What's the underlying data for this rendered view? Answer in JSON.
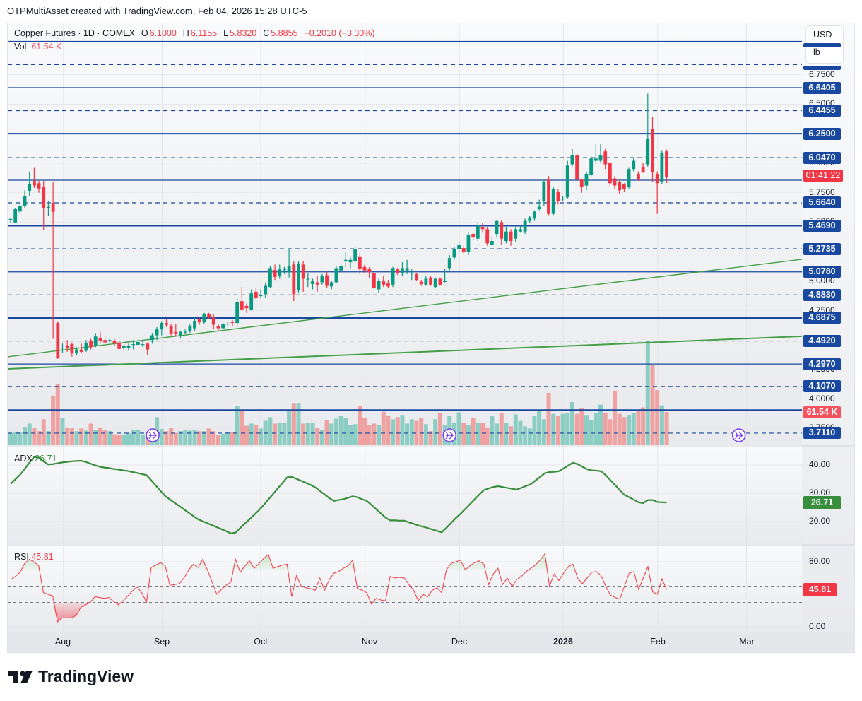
{
  "attribution": "OTPMultiAsset created with TradingView.com, Feb 04, 2026 15:28 UTC-5",
  "legend": {
    "symbol": "Copper Futures · 1D · COMEX",
    "o_label": "O",
    "o": "6.1000",
    "h_label": "H",
    "h": "6.1155",
    "l_label": "L",
    "l": "5.8320",
    "c_label": "C",
    "c": "5.8855",
    "change": "−0.2010 (−3.30%)",
    "vol_label": "Vol",
    "vol": "61.54 K"
  },
  "units": {
    "currency": "USD",
    "unit": "lb"
  },
  "colors": {
    "up": "#089981",
    "down": "#f23645",
    "vol_up": "#8ccdc4",
    "vol_down": "#eea2a2",
    "level": "#1848a0",
    "trend": "#43a047",
    "adx": "#388e3c",
    "rsi": "#f23645",
    "event": "#7b3ff2"
  },
  "price_axis": {
    "ticks": [
      "6.7500",
      "6.5000",
      "6.0000",
      "5.7500",
      "5.5000",
      "5.2500",
      "5.0000",
      "4.7500",
      "4.2500",
      "4.0000",
      "3.7500"
    ],
    "labels": [
      "6.6405",
      "6.4455",
      "6.2500",
      "6.0470",
      "5.6640",
      "5.4690",
      "5.2735",
      "5.0780",
      "4.8830",
      "4.6875",
      "4.4920",
      "4.2970",
      "4.1070",
      "3.7110"
    ],
    "countdown": "01:41:22",
    "volume_label": "61.54 K"
  },
  "levels": [
    {
      "price": 7.0305,
      "style": "solid",
      "weight": "thick"
    },
    {
      "price": 6.8355,
      "style": "dashed"
    },
    {
      "price": 6.6405,
      "style": "solid"
    },
    {
      "price": 6.4455,
      "style": "dashed"
    },
    {
      "price": 6.25,
      "style": "solid",
      "weight": "thick"
    },
    {
      "price": 6.047,
      "style": "dashed"
    },
    {
      "price": 5.8555,
      "style": "solid"
    },
    {
      "price": 5.664,
      "style": "dashed"
    },
    {
      "price": 5.469,
      "style": "solid",
      "weight": "thick"
    },
    {
      "price": 5.2735,
      "style": "dashed"
    },
    {
      "price": 5.078,
      "style": "solid"
    },
    {
      "price": 4.883,
      "style": "dashed"
    },
    {
      "price": 4.6875,
      "style": "solid",
      "weight": "thick"
    },
    {
      "price": 4.492,
      "style": "dashed"
    },
    {
      "price": 4.297,
      "style": "solid"
    },
    {
      "price": 4.107,
      "style": "dashed"
    },
    {
      "price": 3.9065,
      "style": "solid",
      "weight": "thick"
    },
    {
      "price": 3.711,
      "style": "dashed"
    }
  ],
  "trendlines": [
    {
      "start_price": 4.358,
      "end_price": 5.185
    },
    {
      "start_price": 4.256,
      "end_price": 4.532
    }
  ],
  "time_axis": [
    {
      "label": "Aug",
      "bold": false,
      "bar": 11.2
    },
    {
      "label": "Sep",
      "bold": false,
      "bar": 32.1
    },
    {
      "label": "Oct",
      "bold": false,
      "bar": 53.0
    },
    {
      "label": "Nov",
      "bold": false,
      "bar": 75.1
    },
    {
      "label": "Dec",
      "bold": false,
      "bar": 95.1
    },
    {
      "label": "2026",
      "bold": true,
      "bar": 117.1
    },
    {
      "label": "Feb",
      "bold": false,
      "bar": 137.1
    },
    {
      "label": "Mar",
      "bold": false,
      "bar": 155.9
    }
  ],
  "events": [
    {
      "icon": "event-arrow-icon",
      "bar": 30.1
    },
    {
      "icon": "event-arrow-icon",
      "bar": 93.0
    },
    {
      "icon": "event-arrow-icon",
      "bar": 154.3
    }
  ],
  "adx": {
    "label": "ADX",
    "value": "26.71",
    "ticks": [
      "40.00",
      "30.00",
      "20.00"
    ]
  },
  "rsi": {
    "label": "RSI",
    "value": "45.81",
    "ticks": [
      "80.00",
      "40.00",
      "0.00"
    ]
  },
  "brand": "TradingView",
  "chart_data": {
    "type": "candlestick",
    "ohlc": [
      [
        5.52,
        5.54,
        5.49,
        5.526
      ],
      [
        5.497,
        5.62,
        5.49,
        5.61
      ],
      [
        5.59,
        5.67,
        5.57,
        5.64
      ],
      [
        5.64,
        5.77,
        5.62,
        5.72
      ],
      [
        5.766,
        5.93,
        5.72,
        5.826
      ],
      [
        5.85,
        5.96,
        5.79,
        5.81
      ],
      [
        5.83,
        5.85,
        5.75,
        5.785
      ],
      [
        5.8,
        5.85,
        5.43,
        5.616
      ],
      [
        5.62,
        5.68,
        5.55,
        5.63
      ],
      [
        5.664,
        5.84,
        4.51,
        5.587
      ],
      [
        4.645,
        4.66,
        4.34,
        4.35
      ],
      [
        4.43,
        4.47,
        4.39,
        4.436
      ],
      [
        4.455,
        4.5,
        4.4,
        4.436
      ],
      [
        4.465,
        4.48,
        4.36,
        4.39
      ],
      [
        4.39,
        4.44,
        4.37,
        4.42
      ],
      [
        4.42,
        4.47,
        4.39,
        4.4
      ],
      [
        4.41,
        4.5,
        4.4,
        4.476
      ],
      [
        4.49,
        4.51,
        4.42,
        4.44
      ],
      [
        4.452,
        4.56,
        4.44,
        4.53
      ],
      [
        4.52,
        4.57,
        4.47,
        4.49
      ],
      [
        4.5,
        4.53,
        4.46,
        4.48
      ],
      [
        4.5,
        4.52,
        4.47,
        4.5
      ],
      [
        4.49,
        4.51,
        4.45,
        4.47
      ],
      [
        4.48,
        4.49,
        4.42,
        4.425
      ],
      [
        4.43,
        4.46,
        4.41,
        4.45
      ],
      [
        4.43,
        4.47,
        4.41,
        4.45
      ],
      [
        4.46,
        4.5,
        4.42,
        4.465
      ],
      [
        4.46,
        4.5,
        4.45,
        4.484
      ],
      [
        4.465,
        4.49,
        4.44,
        4.465
      ],
      [
        4.47,
        4.48,
        4.37,
        4.42
      ],
      [
        4.5,
        4.56,
        4.47,
        4.54
      ],
      [
        4.54,
        4.61,
        4.5,
        4.59
      ],
      [
        4.59,
        4.66,
        4.54,
        4.645
      ],
      [
        4.645,
        4.68,
        4.61,
        4.63
      ],
      [
        4.62,
        4.64,
        4.54,
        4.557
      ],
      [
        4.57,
        4.64,
        4.53,
        4.55
      ],
      [
        4.54,
        4.58,
        4.52,
        4.57
      ],
      [
        4.57,
        4.59,
        4.55,
        4.57
      ],
      [
        4.574,
        4.64,
        4.56,
        4.62
      ],
      [
        4.6,
        4.69,
        4.58,
        4.663
      ],
      [
        4.675,
        4.69,
        4.63,
        4.65
      ],
      [
        4.65,
        4.73,
        4.64,
        4.72
      ],
      [
        4.72,
        4.73,
        4.68,
        4.69
      ],
      [
        4.7,
        4.72,
        4.59,
        4.63
      ],
      [
        4.62,
        4.64,
        4.58,
        4.6
      ],
      [
        4.6,
        4.65,
        4.59,
        4.635
      ],
      [
        4.64,
        4.66,
        4.62,
        4.64
      ],
      [
        4.655,
        4.67,
        4.62,
        4.645
      ],
      [
        4.645,
        4.86,
        4.62,
        4.82
      ],
      [
        4.83,
        4.95,
        4.75,
        4.76
      ],
      [
        4.79,
        4.81,
        4.73,
        4.77
      ],
      [
        4.76,
        4.93,
        4.75,
        4.896
      ],
      [
        4.91,
        4.94,
        4.84,
        4.855
      ],
      [
        4.88,
        4.93,
        4.86,
        4.88
      ],
      [
        4.89,
        4.99,
        4.86,
        4.96
      ],
      [
        4.95,
        5.13,
        4.94,
        5.11
      ],
      [
        5.095,
        5.14,
        5.01,
        5.035
      ],
      [
        5.04,
        5.14,
        5.02,
        5.1
      ],
      [
        5.1,
        5.12,
        5.06,
        5.1
      ],
      [
        5.075,
        5.27,
        5.03,
        5.13
      ],
      [
        5.14,
        5.17,
        4.83,
        4.89
      ],
      [
        4.92,
        5.17,
        4.9,
        5.15
      ],
      [
        5.14,
        5.17,
        4.91,
        5.02
      ],
      [
        5.02,
        5.07,
        4.95,
        5.02
      ],
      [
        4.975,
        5.02,
        4.93,
        5.005
      ],
      [
        4.99,
        5.04,
        4.91,
        4.97
      ],
      [
        4.99,
        5.06,
        4.97,
        5.04
      ],
      [
        5.05,
        5.08,
        4.94,
        4.96
      ],
      [
        4.955,
        5.0,
        4.93,
        4.99
      ],
      [
        4.99,
        5.13,
        4.98,
        5.11
      ],
      [
        5.09,
        5.14,
        5.07,
        5.125
      ],
      [
        5.18,
        5.25,
        5.12,
        5.18
      ],
      [
        5.16,
        5.21,
        5.11,
        5.18
      ],
      [
        5.17,
        5.29,
        5.16,
        5.27
      ],
      [
        5.21,
        5.24,
        5.06,
        5.1
      ],
      [
        5.12,
        5.14,
        5.07,
        5.09
      ],
      [
        5.105,
        5.12,
        5.03,
        5.075
      ],
      [
        5.065,
        5.07,
        4.93,
        4.945
      ],
      [
        4.93,
        5.02,
        4.9,
        5.0
      ],
      [
        5.0,
        5.04,
        4.95,
        4.97
      ],
      [
        4.98,
        5.01,
        4.94,
        4.955
      ],
      [
        4.97,
        5.12,
        4.95,
        5.11
      ],
      [
        5.1,
        5.11,
        5.05,
        5.065
      ],
      [
        5.065,
        5.16,
        5.04,
        5.11
      ],
      [
        5.09,
        5.18,
        5.06,
        5.11
      ],
      [
        5.07,
        5.1,
        5.01,
        5.07
      ],
      [
        5.06,
        5.07,
        5.0,
        5.01
      ],
      [
        4.995,
        5.01,
        4.96,
        4.975
      ],
      [
        4.97,
        5.04,
        4.96,
        5.02
      ],
      [
        5.03,
        5.04,
        4.96,
        4.97
      ],
      [
        4.95,
        5.03,
        4.94,
        5.02
      ],
      [
        5.02,
        5.03,
        4.96,
        4.97
      ],
      [
        5.0,
        5.1,
        4.99,
        5.0
      ],
      [
        5.11,
        5.22,
        5.09,
        5.195
      ],
      [
        5.2,
        5.29,
        5.18,
        5.27
      ],
      [
        5.27,
        5.34,
        5.25,
        5.31
      ],
      [
        5.28,
        5.3,
        5.23,
        5.25
      ],
      [
        5.25,
        5.41,
        5.22,
        5.39
      ],
      [
        5.4,
        5.41,
        5.35,
        5.37
      ],
      [
        5.36,
        5.49,
        5.34,
        5.47
      ],
      [
        5.46,
        5.49,
        5.41,
        5.44
      ],
      [
        5.44,
        5.46,
        5.3,
        5.32
      ],
      [
        5.31,
        5.37,
        5.3,
        5.34
      ],
      [
        5.4,
        5.52,
        5.37,
        5.51
      ],
      [
        5.5,
        5.52,
        5.31,
        5.36
      ],
      [
        5.34,
        5.46,
        5.32,
        5.42
      ],
      [
        5.42,
        5.44,
        5.3,
        5.34
      ],
      [
        5.36,
        5.47,
        5.33,
        5.44
      ],
      [
        5.42,
        5.47,
        5.41,
        5.44
      ],
      [
        5.42,
        5.53,
        5.4,
        5.51
      ],
      [
        5.51,
        5.55,
        5.49,
        5.54
      ],
      [
        5.53,
        5.6,
        5.51,
        5.59
      ],
      [
        5.61,
        5.69,
        5.6,
        5.63
      ],
      [
        5.675,
        5.86,
        5.64,
        5.84
      ],
      [
        5.86,
        5.89,
        5.56,
        5.57
      ],
      [
        5.57,
        5.8,
        5.56,
        5.78
      ],
      [
        5.76,
        5.78,
        5.65,
        5.68
      ],
      [
        5.7,
        5.72,
        5.68,
        5.7
      ],
      [
        5.71,
        6.02,
        5.7,
        5.98
      ],
      [
        5.99,
        6.12,
        5.97,
        6.07
      ],
      [
        6.07,
        6.08,
        5.85,
        5.86
      ],
      [
        5.86,
        5.87,
        5.75,
        5.8
      ],
      [
        5.81,
        5.93,
        5.77,
        5.91
      ],
      [
        5.9,
        6.06,
        5.88,
        6.04
      ],
      [
        6.02,
        6.16,
        6.0,
        6.04
      ],
      [
        6.02,
        6.16,
        6.0,
        6.07
      ],
      [
        6.1,
        6.12,
        5.95,
        5.99
      ],
      [
        6.0,
        6.01,
        5.8,
        5.83
      ],
      [
        5.87,
        5.89,
        5.78,
        5.81
      ],
      [
        5.84,
        5.86,
        5.74,
        5.77
      ],
      [
        5.82,
        5.83,
        5.76,
        5.78
      ],
      [
        5.8,
        5.96,
        5.78,
        5.95
      ],
      [
        5.95,
        6.05,
        5.93,
        6.02
      ],
      [
        5.91,
        5.93,
        5.85,
        5.86
      ],
      [
        5.97,
        6.0,
        5.92,
        5.92
      ],
      [
        5.99,
        6.59,
        5.97,
        6.21
      ],
      [
        6.29,
        6.39,
        5.84,
        5.92
      ],
      [
        5.91,
        5.93,
        5.57,
        5.83
      ],
      [
        5.84,
        6.11,
        5.82,
        6.09
      ],
      [
        6.1,
        6.1155,
        5.832,
        5.8855
      ]
    ],
    "volume_k": [
      22,
      25,
      24,
      34,
      40,
      32,
      26,
      48,
      26,
      92,
      114,
      51,
      33,
      32,
      26,
      31,
      27,
      40,
      28,
      33,
      28,
      26,
      20,
      19,
      20,
      22,
      28,
      29,
      20,
      16,
      20,
      52,
      30,
      26,
      32,
      23,
      26,
      28,
      27,
      28,
      26,
      26,
      31,
      26,
      19,
      21,
      24,
      24,
      72,
      65,
      36,
      40,
      38,
      31,
      45,
      52,
      40,
      42,
      42,
      65,
      77,
      77,
      40,
      42,
      42,
      32,
      28,
      46,
      40,
      49,
      55,
      50,
      38,
      39,
      72,
      51,
      38,
      40,
      38,
      62,
      54,
      48,
      52,
      56,
      40,
      48,
      45,
      50,
      39,
      26,
      48,
      60,
      38,
      55,
      42,
      61,
      42,
      38,
      51,
      41,
      41,
      33,
      54,
      40,
      60,
      42,
      35,
      57,
      45,
      35,
      31,
      55,
      65,
      48,
      97,
      58,
      54,
      58,
      60,
      80,
      58,
      68,
      56,
      47,
      60,
      75,
      60,
      48,
      101,
      58,
      52,
      56,
      60,
      66,
      70,
      194,
      148,
      102,
      74,
      61.54
    ],
    "adx": [
      33.3,
      34.9,
      36.5,
      38.6,
      40.8,
      42.8,
      42.6,
      41.3,
      40.2,
      40.3,
      40.6,
      40.9,
      41.1,
      41.3,
      41.4,
      41.5,
      41.1,
      40.5,
      39.9,
      39.4,
      39.1,
      38.9,
      38.6,
      38.4,
      38.1,
      37.9,
      37.5,
      37.2,
      36.8,
      36.4,
      34.6,
      32.7,
      30.8,
      29.0,
      27.8,
      26.6,
      25.5,
      24.3,
      23.1,
      21.9,
      20.8,
      20.1,
      19.4,
      18.7,
      18.0,
      17.3,
      16.6,
      15.8,
      16.1,
      17.7,
      19.3,
      20.8,
      22.4,
      24.0,
      25.8,
      27.8,
      29.7,
      31.7,
      33.6,
      35.6,
      35.8,
      35.1,
      34.4,
      33.7,
      33.0,
      32.1,
      30.8,
      29.6,
      28.3,
      27.3,
      27.6,
      27.9,
      28.4,
      28.9,
      28.6,
      27.9,
      27.3,
      25.9,
      24.4,
      22.9,
      21.4,
      20.4,
      20.4,
      20.3,
      20.3,
      19.7,
      19.2,
      18.6,
      18.2,
      17.7,
      17.2,
      16.7,
      16.2,
      17.8,
      19.5,
      21.2,
      22.7,
      24.4,
      26.1,
      27.8,
      29.5,
      31.1,
      31.7,
      32.2,
      32.5,
      32.2,
      31.9,
      31.6,
      31.3,
      31.9,
      32.6,
      33.2,
      34.5,
      35.8,
      37.1,
      37.5,
      37.6,
      37.8,
      38.8,
      39.8,
      40.8,
      40.3,
      39.4,
      38.5,
      38.1,
      38.0,
      37.8,
      36.4,
      34.6,
      32.9,
      31.1,
      29.4,
      28.6,
      27.7,
      26.8,
      26.5,
      27.6,
      27.6,
      26.9,
      26.8,
      26.71
    ],
    "rsi": [
      58,
      62,
      67,
      78,
      83,
      80,
      75,
      42,
      40,
      38,
      6,
      11,
      11,
      11,
      14,
      24,
      27,
      30,
      37,
      36,
      35,
      36,
      31,
      27,
      32,
      38,
      44,
      49,
      42,
      30,
      73,
      76,
      79,
      75,
      51,
      52,
      53,
      60,
      70,
      77,
      73,
      83,
      70,
      55,
      40,
      46,
      51,
      55,
      83,
      67,
      75,
      81,
      72,
      78,
      84,
      89,
      72,
      74,
      76,
      77,
      37,
      63,
      50,
      48,
      47,
      45,
      60,
      45,
      58,
      66,
      68,
      72,
      75,
      82,
      47,
      45,
      42,
      28,
      35,
      33,
      32,
      62,
      60,
      61,
      60,
      52,
      45,
      32,
      40,
      37,
      45,
      48,
      42,
      70,
      78,
      80,
      82,
      70,
      75,
      79,
      81,
      77,
      52,
      65,
      72,
      52,
      60,
      50,
      58,
      62,
      68,
      72,
      76,
      82,
      90,
      50,
      65,
      57,
      66,
      74,
      77,
      60,
      53,
      60,
      67,
      68,
      63,
      50,
      39,
      36,
      34,
      50,
      66,
      68,
      46,
      60,
      74,
      43,
      40,
      59,
      45.81
    ],
    "adx_range": [
      10,
      47
    ],
    "rsi_range": [
      0,
      100
    ],
    "rsi_bands": [
      70,
      50,
      30
    ],
    "price_range": [
      3.68,
      7.06
    ]
  }
}
